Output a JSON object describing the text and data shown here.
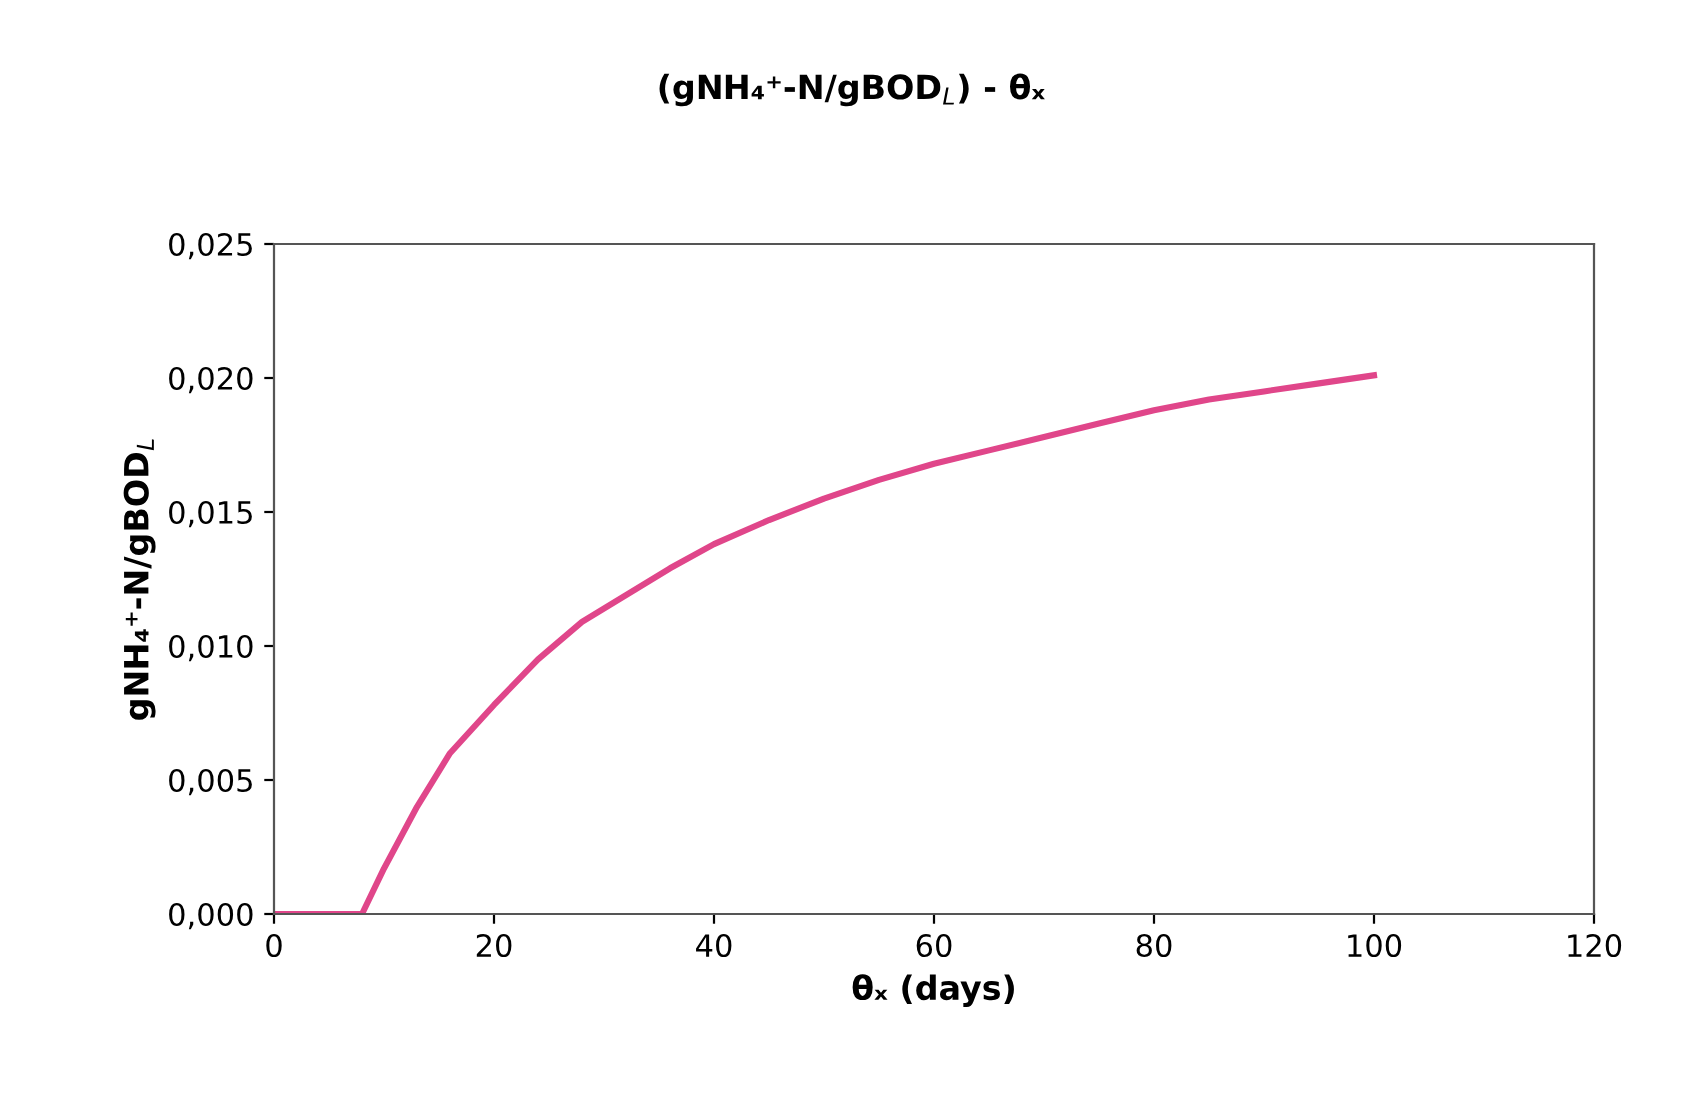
{
  "chart_data": {
    "type": "line",
    "title": "(gNH₄⁺-N/gBOD$_{L}$) - θₓ",
    "xlabel": "θₓ (days)",
    "ylabel": "gNH₄⁺-N/gBOD$_{L}$",
    "series": [
      {
        "color": "#e0468a",
        "x": [
          0,
          4,
          8,
          10,
          13,
          16,
          20,
          24,
          28,
          32,
          36,
          40,
          45,
          50,
          55,
          60,
          65,
          70,
          75,
          80,
          85,
          90,
          95,
          100
        ],
        "values": [
          0,
          0,
          0,
          0.0017,
          0.004,
          0.006,
          0.0078,
          0.0095,
          0.0109,
          0.0119,
          0.0129,
          0.0138,
          0.0147,
          0.0155,
          0.0162,
          0.0168,
          0.0173,
          0.0178,
          0.0183,
          0.0188,
          0.0192,
          0.0195,
          0.0198,
          0.0201
        ]
      }
    ],
    "xlim": [
      0,
      120
    ],
    "xticks": [
      0,
      20,
      40,
      60,
      80,
      100,
      120
    ],
    "ylim": [
      0,
      0.025
    ],
    "yticks": [
      {
        "value": 0,
        "label": "0,000"
      },
      {
        "value": 0.005,
        "label": "0,005"
      },
      {
        "value": 0.01,
        "label": "0,010"
      },
      {
        "value": 0.015,
        "label": "0,015"
      },
      {
        "value": 0.02,
        "label": "0,020"
      },
      {
        "value": 0.025,
        "label": "0,025"
      }
    ],
    "grid": false,
    "legend": false,
    "marker": "none",
    "line_style": "solid"
  }
}
